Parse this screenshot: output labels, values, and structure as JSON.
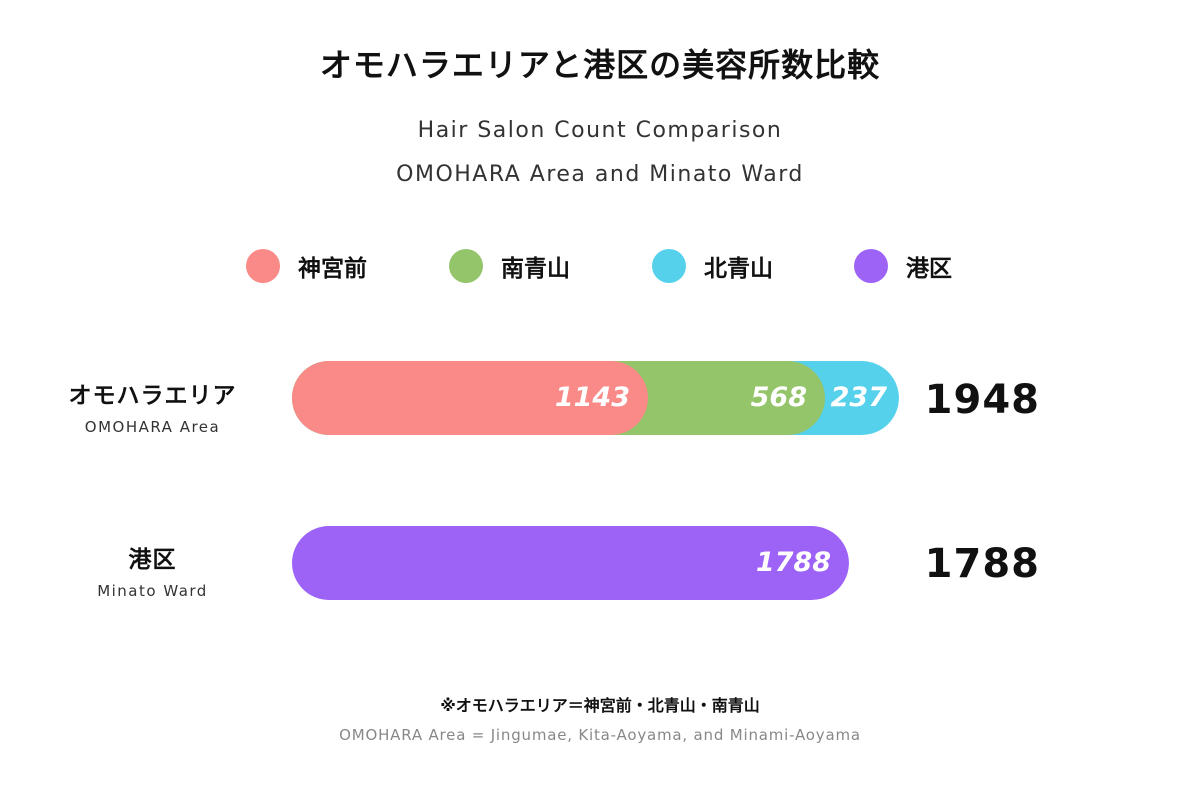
{
  "title": "オモハラエリアと港区の美容所数比較",
  "subtitle_line1": "Hair Salon Count Comparison",
  "subtitle_line2": "OMOHARA Area and Minato Ward",
  "legend": [
    {
      "label": "神宮前",
      "color": "#F98A88"
    },
    {
      "label": "南青山",
      "color": "#95C56A"
    },
    {
      "label": "北青山",
      "color": "#55D1EC"
    },
    {
      "label": "港区",
      "color": "#9D63F6"
    }
  ],
  "note_jp": "※オモハラエリア＝神宮前・北青山・南青山",
  "note_en": "OMOHARA Area = Jingumae, Kita-Aoyama, and Minami-Aoyama",
  "chart_data": {
    "type": "bar",
    "orientation": "horizontal",
    "stacked": true,
    "categories": [
      {
        "label": "オモハラエリア",
        "sublabel": "OMOHARA Area"
      },
      {
        "label": "港区",
        "sublabel": "Minato Ward"
      }
    ],
    "series": [
      {
        "name": "神宮前",
        "color": "#F98A88",
        "values": [
          1143,
          0
        ]
      },
      {
        "name": "南青山",
        "color": "#95C56A",
        "values": [
          568,
          0
        ]
      },
      {
        "name": "北青山",
        "color": "#55D1EC",
        "values": [
          237,
          0
        ]
      },
      {
        "name": "港区",
        "color": "#9D63F6",
        "values": [
          0,
          1788
        ]
      }
    ],
    "totals": [
      1948,
      1788
    ],
    "xlim": [
      0,
      1948
    ],
    "grid": false,
    "legend_position": "top"
  }
}
